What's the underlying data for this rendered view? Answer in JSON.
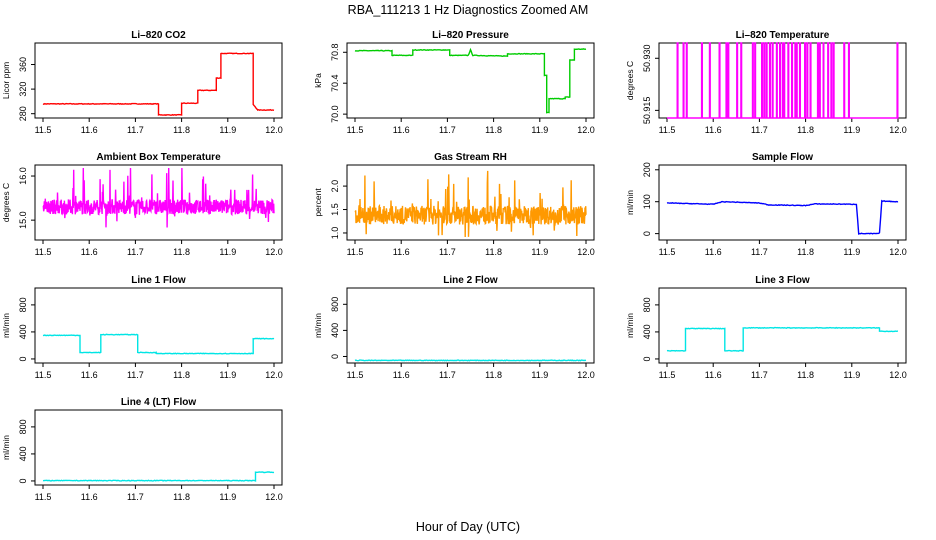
{
  "figure": {
    "title": "RBA_111213  1 Hz Diagnostics Zoomed AM",
    "xlabel": "Hour of Day (UTC)"
  },
  "chart_data": [
    {
      "type": "line",
      "title": "Li–820 CO2",
      "ylabel": "Licor ppm",
      "color": "#ff0000",
      "xlim": [
        11.5,
        12.0
      ],
      "ylim": [
        273,
        395
      ],
      "xticks": [
        "11.5",
        "11.6",
        "11.7",
        "11.8",
        "11.9",
        "12.0"
      ],
      "yticks": [
        280,
        320,
        360
      ],
      "x": [
        11.5,
        11.75,
        11.75,
        11.8,
        11.8,
        11.835,
        11.835,
        11.875,
        11.875,
        11.885,
        11.885,
        11.955,
        11.955,
        11.965,
        11.965,
        12.0
      ],
      "y": [
        296,
        296,
        278,
        278,
        297,
        297,
        318,
        318,
        338,
        338,
        378,
        378,
        295,
        286,
        286,
        286
      ]
    },
    {
      "type": "line",
      "title": "Li–820 Pressure",
      "ylabel": "kPa",
      "color": "#00cc00",
      "xlim": [
        11.5,
        12.0
      ],
      "ylim": [
        69.95,
        70.92
      ],
      "xticks": [
        "11.5",
        "11.6",
        "11.7",
        "11.8",
        "11.9",
        "12.0"
      ],
      "yticks": [
        "70.0",
        "70.4",
        "70.8"
      ],
      "x": [
        11.5,
        11.58,
        11.58,
        11.625,
        11.625,
        11.705,
        11.705,
        11.745,
        11.75,
        11.755,
        11.83,
        11.83,
        11.91,
        11.91,
        11.915,
        11.915,
        11.92,
        11.92,
        11.955,
        11.955,
        11.965,
        11.965,
        11.975,
        11.975,
        12.0
      ],
      "y": [
        70.82,
        70.82,
        70.76,
        70.76,
        70.83,
        70.83,
        70.76,
        70.76,
        70.83,
        70.76,
        70.75,
        70.78,
        70.78,
        70.5,
        70.5,
        70.02,
        70.02,
        70.2,
        70.2,
        70.22,
        70.22,
        70.7,
        70.7,
        70.84,
        70.84
      ]
    },
    {
      "type": "line",
      "title": "Li–820 Temperature",
      "ylabel": "degrees C",
      "color": "#ff00ff",
      "xlim": [
        11.5,
        12.0
      ],
      "ylim": [
        50.9128,
        50.9344
      ],
      "xticks": [
        "11.5",
        "11.6",
        "11.7",
        "11.8",
        "11.9",
        "12.0"
      ],
      "yticks": [
        "50.915",
        "50.930"
      ],
      "baseline": 50.9128,
      "high": 50.9344,
      "spike_times": [
        11.522,
        11.535,
        11.542,
        11.575,
        11.592,
        11.613,
        11.628,
        11.632,
        11.651,
        11.66,
        11.685,
        11.69,
        11.705,
        11.71,
        11.715,
        11.722,
        11.728,
        11.737,
        11.744,
        11.75,
        11.753,
        11.762,
        11.77,
        11.777,
        11.78,
        11.787,
        11.798,
        11.803,
        11.81,
        11.826,
        11.83,
        11.838,
        11.848,
        11.855,
        11.86,
        11.883,
        11.893,
        11.998
      ]
    },
    {
      "type": "line",
      "title": "Ambient Box Temperature",
      "ylabel": "degrees C",
      "color": "#ff00ff",
      "xlim": [
        11.5,
        12.0
      ],
      "ylim": [
        14.55,
        16.25
      ],
      "xticks": [
        "11.5",
        "11.6",
        "11.7",
        "11.8",
        "11.9",
        "12.0"
      ],
      "yticks": [
        "15.0",
        "16.0"
      ],
      "mean": 15.3,
      "noise": 0.17,
      "spike": 0.75
    },
    {
      "type": "line",
      "title": "Gas Stream RH",
      "ylabel": "percent",
      "color": "#ff9900",
      "xlim": [
        11.5,
        12.0
      ],
      "ylim": [
        0.85,
        2.45
      ],
      "xticks": [
        "11.5",
        "11.6",
        "11.7",
        "11.8",
        "11.9",
        "12.0"
      ],
      "yticks": [
        "1.0",
        "1.5",
        "2.0"
      ],
      "mean": 1.38,
      "noise": 0.2,
      "spike": 0.75
    },
    {
      "type": "line",
      "title": "Sample Flow",
      "ylabel": "ml/min",
      "color": "#0000ff",
      "xlim": [
        11.5,
        12.0
      ],
      "ylim": [
        -20,
        215
      ],
      "xticks": [
        "11.5",
        "11.6",
        "11.7",
        "11.8",
        "11.9",
        "12.0"
      ],
      "yticks": [
        0,
        100,
        200
      ],
      "x": [
        11.5,
        11.6,
        11.62,
        11.7,
        11.72,
        11.8,
        11.82,
        11.91,
        11.915,
        11.955,
        11.96,
        11.965,
        12.0
      ],
      "y": [
        96,
        92,
        100,
        96,
        90,
        88,
        93,
        92,
        0,
        0,
        2,
        102,
        100
      ]
    },
    {
      "type": "line",
      "title": "Line 1 Flow",
      "ylabel": "ml/min",
      "color": "#00e5e5",
      "xlim": [
        11.5,
        12.0
      ],
      "ylim": [
        -60,
        1050
      ],
      "xticks": [
        "11.5",
        "11.6",
        "11.7",
        "11.8",
        "11.9",
        "12.0"
      ],
      "yticks": [
        0,
        400,
        800
      ],
      "x": [
        11.5,
        11.58,
        11.58,
        11.625,
        11.625,
        11.705,
        11.705,
        11.745,
        11.745,
        11.955,
        11.955,
        12.0
      ],
      "y": [
        350,
        350,
        95,
        95,
        360,
        360,
        95,
        95,
        80,
        80,
        300,
        300
      ]
    },
    {
      "type": "line",
      "title": "Line 2 Flow",
      "ylabel": "ml/min",
      "color": "#00e5e5",
      "xlim": [
        11.5,
        12.0
      ],
      "ylim": [
        -100,
        1050
      ],
      "xticks": [
        "11.5",
        "11.6",
        "11.7",
        "11.8",
        "11.9",
        "12.0"
      ],
      "yticks": [
        0,
        400,
        800
      ],
      "x": [
        11.5,
        12.0
      ],
      "y": [
        -60,
        -60
      ]
    },
    {
      "type": "line",
      "title": "Line 3 Flow",
      "ylabel": "ml/min",
      "color": "#00e5e5",
      "xlim": [
        11.5,
        12.0
      ],
      "ylim": [
        -60,
        1050
      ],
      "xticks": [
        "11.5",
        "11.6",
        "11.7",
        "11.8",
        "11.9",
        "12.0"
      ],
      "yticks": [
        0,
        400,
        800
      ],
      "x": [
        11.5,
        11.54,
        11.54,
        11.625,
        11.625,
        11.665,
        11.665,
        11.96,
        11.96,
        12.0
      ],
      "y": [
        120,
        120,
        450,
        450,
        120,
        120,
        460,
        460,
        410,
        410
      ]
    },
    {
      "type": "line",
      "title": "Line 4 (LT) Flow",
      "ylabel": "ml/min",
      "color": "#00e5e5",
      "xlim": [
        11.5,
        12.0
      ],
      "ylim": [
        -60,
        1050
      ],
      "xticks": [
        "11.5",
        "11.6",
        "11.7",
        "11.8",
        "11.9",
        "12.0"
      ],
      "yticks": [
        0,
        400,
        800
      ],
      "x": [
        11.5,
        11.96,
        11.96,
        12.0
      ],
      "y": [
        5,
        5,
        130,
        130
      ]
    }
  ]
}
